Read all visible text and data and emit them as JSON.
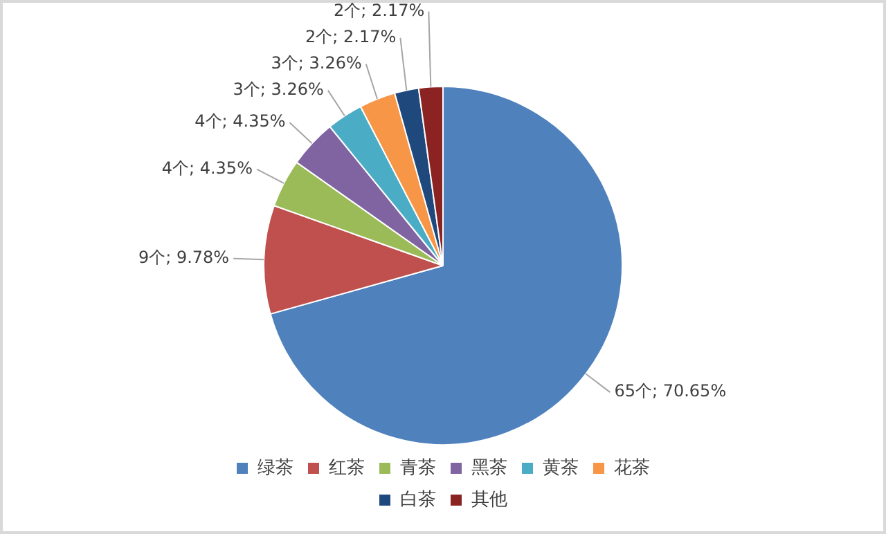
{
  "chart_data": {
    "type": "pie",
    "categories": [
      "绿茶",
      "红茶",
      "青茶",
      "黑茶",
      "黄茶",
      "花茶",
      "白茶",
      "其他"
    ],
    "values": [
      65,
      9,
      4,
      4,
      3,
      3,
      2,
      2
    ],
    "colors": [
      "#4f81bd",
      "#c0504d",
      "#9bbb59",
      "#8064a2",
      "#4bacc6",
      "#f79646",
      "#1f497d",
      "#8b2323"
    ],
    "value_labels": [
      "65个; 70.65%",
      "9个; 9.78%",
      "4个; 4.35%",
      "4个; 4.35%",
      "3个; 3.26%",
      "3个; 3.26%",
      "2个; 2.17%",
      "2个; 2.17%"
    ],
    "legend": "bottom"
  }
}
